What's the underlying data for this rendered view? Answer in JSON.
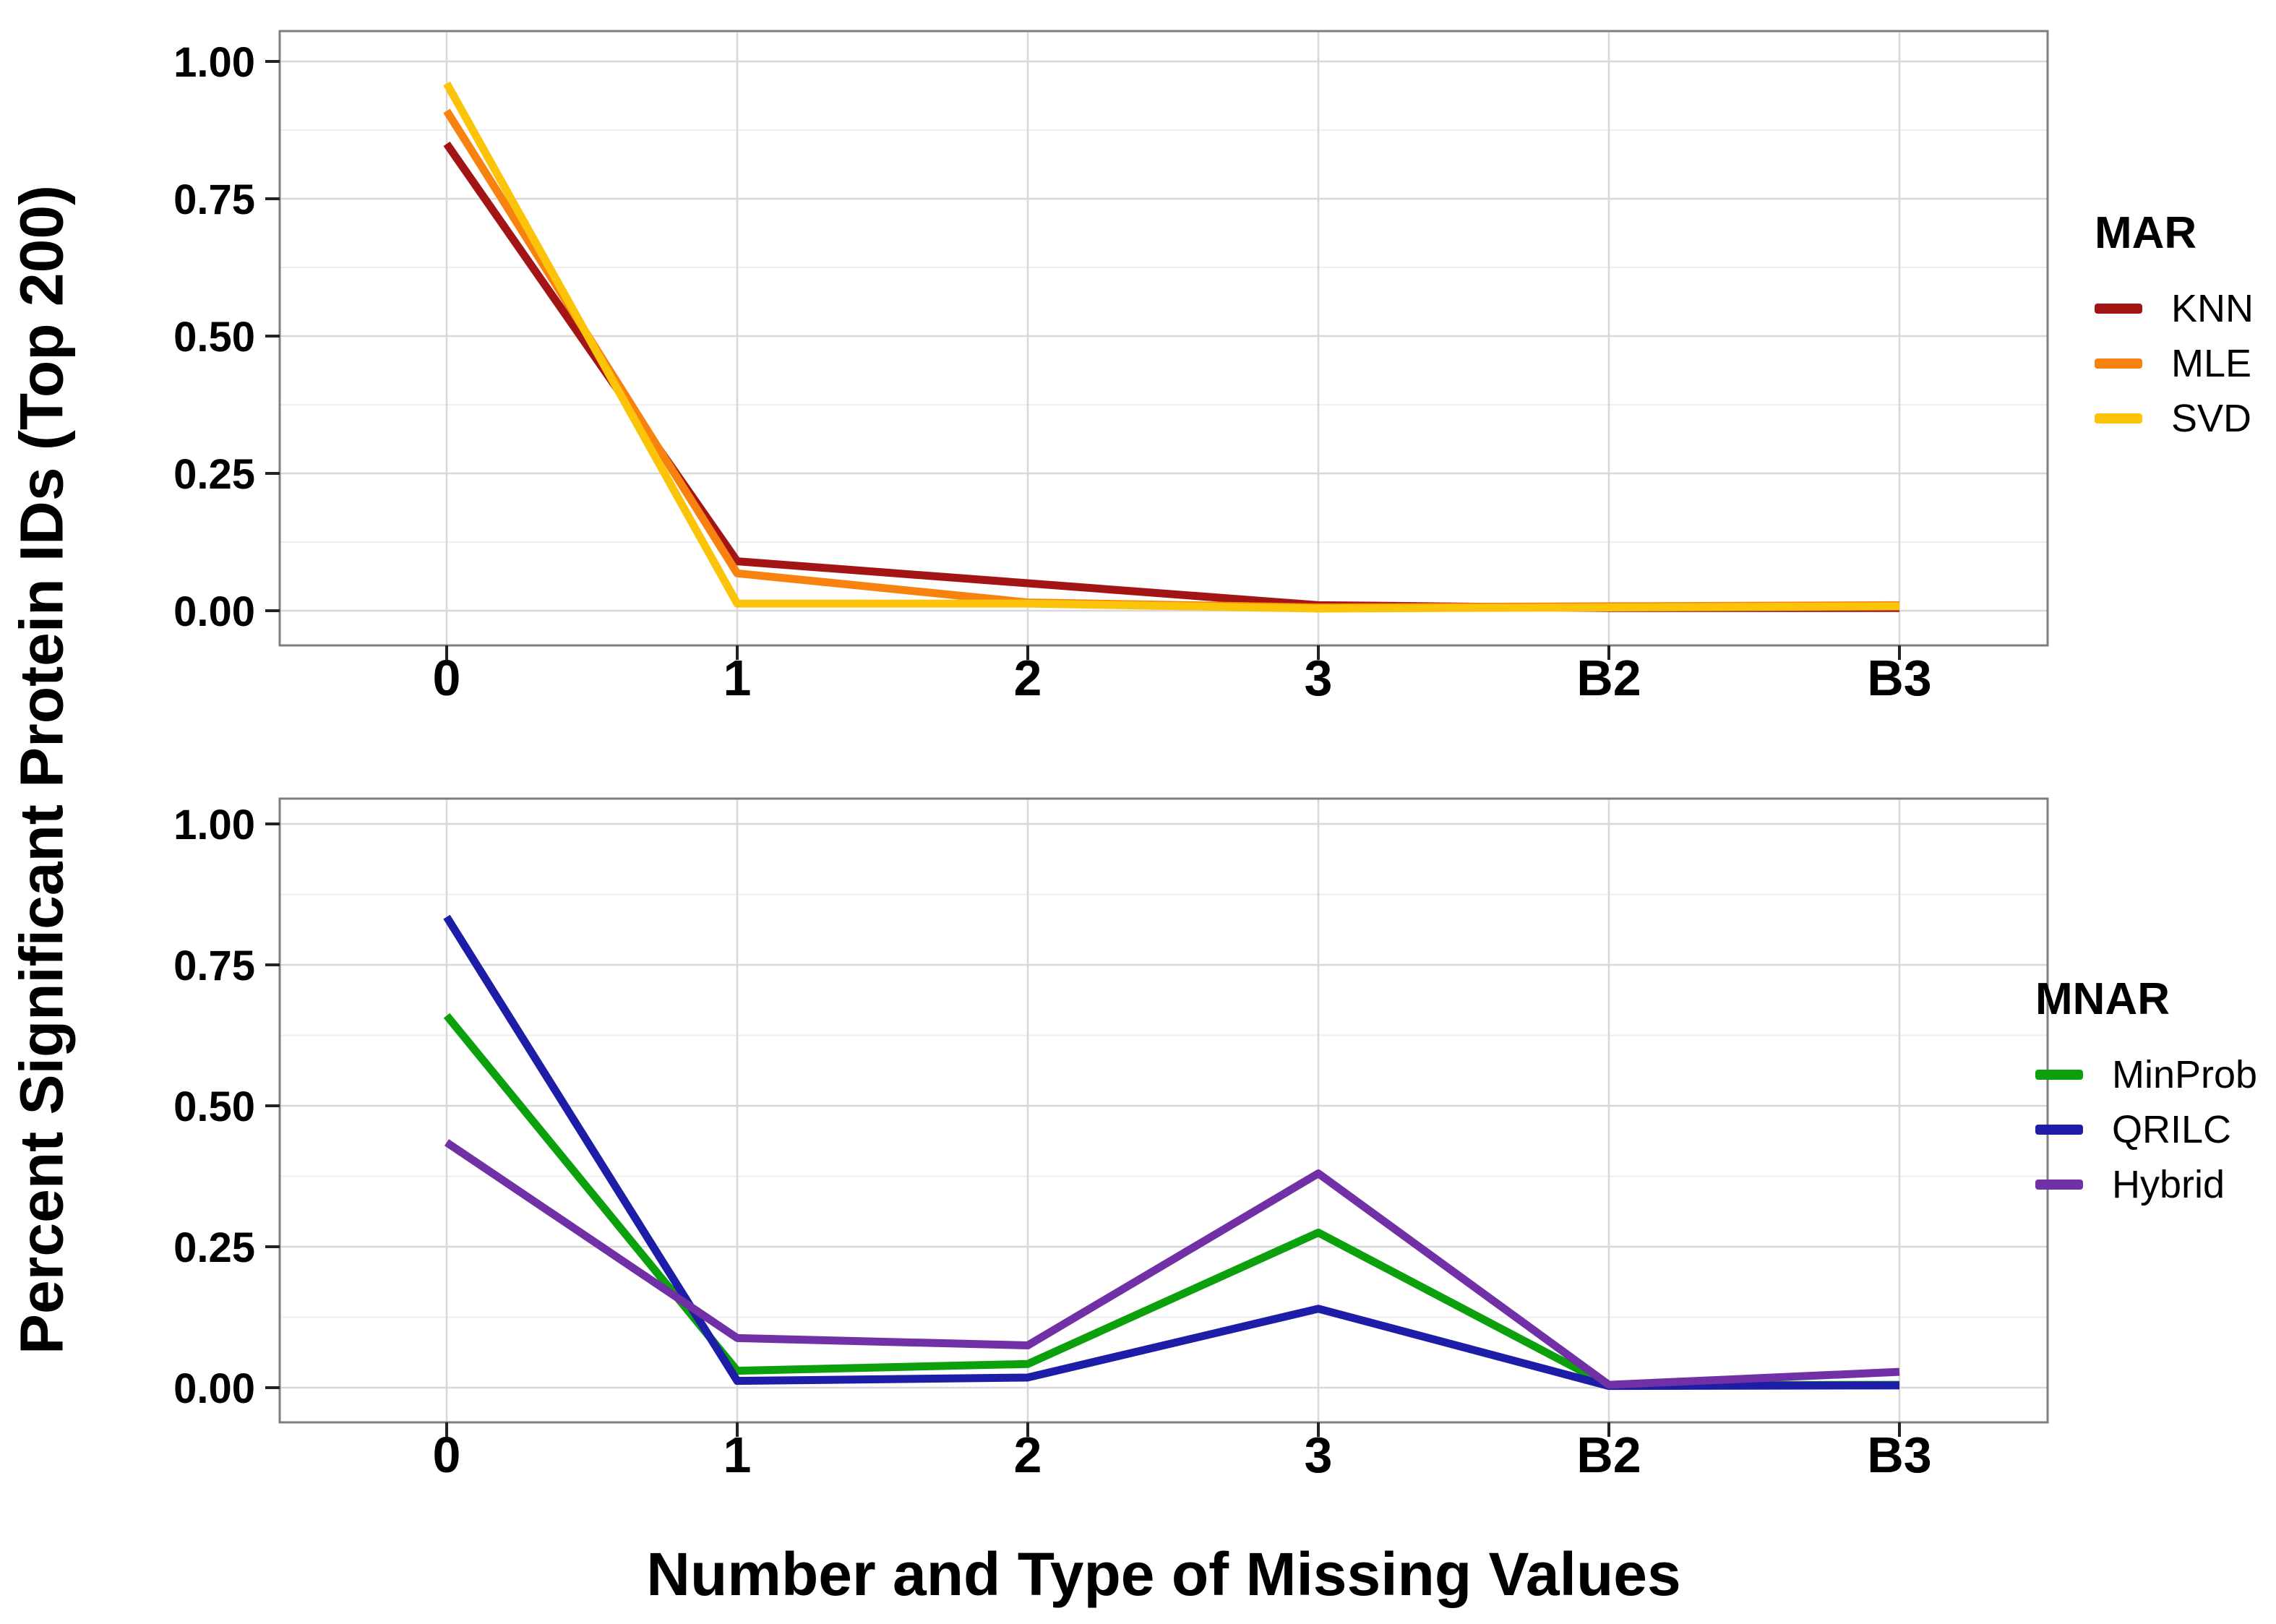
{
  "y_axis_title": "Percent Significant Protein IDs (Top 200)",
  "x_axis_title": "Number and Type of Missing Values",
  "chart_data": [
    {
      "type": "line",
      "panel": "top",
      "legend_title": "MAR",
      "legend_position": "right",
      "categories": [
        "0",
        "1",
        "2",
        "3",
        "B2",
        "B3"
      ],
      "y_tick_labels": [
        "1.00",
        "0.75",
        "0.50",
        "0.25",
        "0.00"
      ],
      "y_tick_values": [
        1.0,
        0.75,
        0.5,
        0.25,
        0.0
      ],
      "ylim": [
        0,
        1
      ],
      "grid": "major and minor horizontal, major vertical",
      "series": [
        {
          "name": "KNN",
          "color": "#A31414",
          "values": [
            0.85,
            0.09,
            0.05,
            0.01,
            0.005,
            0.005
          ]
        },
        {
          "name": "MLE",
          "color": "#F8820F",
          "values": [
            0.91,
            0.068,
            0.015,
            0.006,
            0.008,
            0.01
          ]
        },
        {
          "name": "SVD",
          "color": "#FCC409",
          "values": [
            0.96,
            0.013,
            0.013,
            0.004,
            0.006,
            0.008
          ]
        }
      ]
    },
    {
      "type": "line",
      "panel": "bottom",
      "legend_title": "MNAR",
      "legend_position": "right",
      "categories": [
        "0",
        "1",
        "2",
        "3",
        "B2",
        "B3"
      ],
      "y_tick_labels": [
        "1.00",
        "0.75",
        "0.50",
        "0.25",
        "0.00"
      ],
      "y_tick_values": [
        1.0,
        0.75,
        0.5,
        0.25,
        0.0
      ],
      "ylim": [
        0,
        1
      ],
      "grid": "major and minor horizontal, major vertical",
      "series": [
        {
          "name": "MinProb",
          "color": "#0DA00D",
          "values": [
            0.66,
            0.03,
            0.042,
            0.275,
            0.004,
            0.005
          ]
        },
        {
          "name": "QRILC",
          "color": "#1D1DA8",
          "values": [
            0.835,
            0.012,
            0.018,
            0.14,
            0.003,
            0.004
          ]
        },
        {
          "name": "Hybrid",
          "color": "#7130A5",
          "values": [
            0.435,
            0.088,
            0.075,
            0.38,
            0.005,
            0.028
          ]
        }
      ]
    }
  ]
}
